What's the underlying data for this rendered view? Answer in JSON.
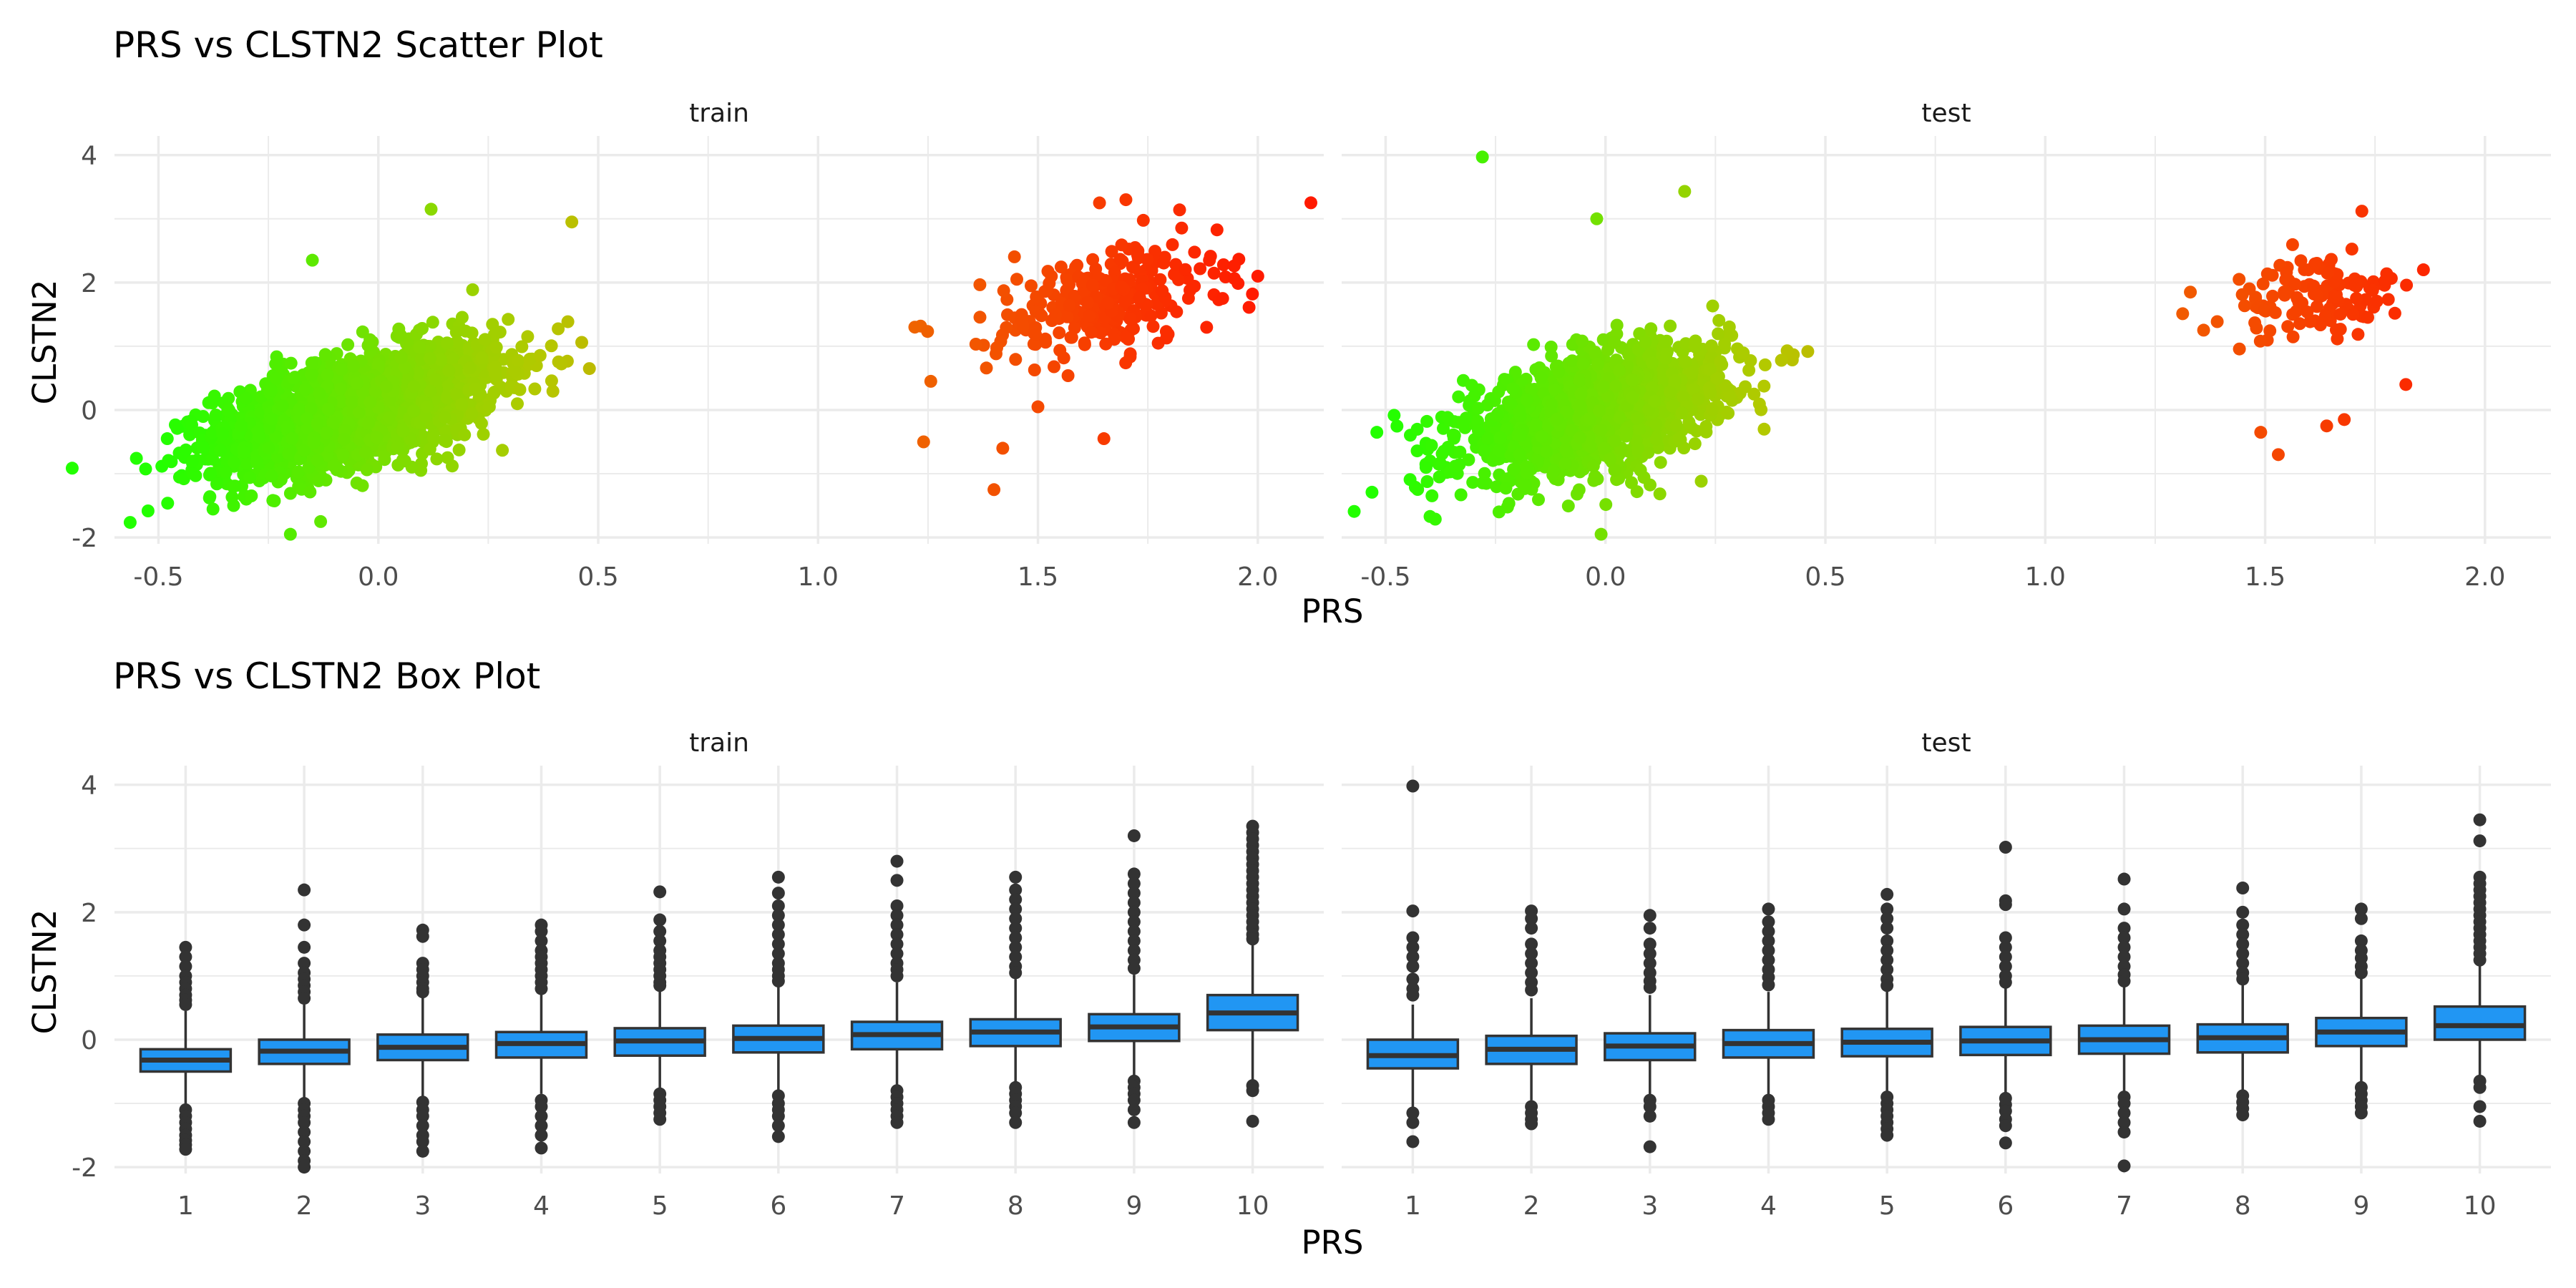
{
  "chart_data": [
    {
      "type": "scatter",
      "title": "PRS vs CLSTN2 Scatter Plot",
      "xlabel": "PRS",
      "ylabel": "CLSTN2",
      "xlim": [
        -0.6,
        2.15
      ],
      "ylim": [
        -2.1,
        4.3
      ],
      "x_ticks": [
        "-0.5",
        "0.0",
        "0.5",
        "1.0",
        "1.5",
        "2.0"
      ],
      "y_ticks": [
        "-2",
        "0",
        "2",
        "4"
      ],
      "grid": true,
      "legend": "none",
      "color_scale": {
        "low": "#22ff00",
        "high": "#ff1a00",
        "mapped_to": "PRS"
      },
      "panels": [
        {
          "name": "train",
          "clusters": [
            {
              "n": 2200,
              "x_mean": -0.05,
              "x_sd": 0.16,
              "y_mean": 0.0,
              "y_sd": 0.5,
              "corr": 0.55
            },
            {
              "n": 280,
              "x_mean": 1.65,
              "x_sd": 0.13,
              "y_mean": 1.7,
              "y_sd": 0.45,
              "corr": 0.4
            }
          ],
          "points": [
            {
              "x": -0.48,
              "y": -0.45
            },
            {
              "x": 0.12,
              "y": 3.15
            },
            {
              "x": 0.44,
              "y": 2.95
            },
            {
              "x": 0.48,
              "y": 0.65
            },
            {
              "x": -0.15,
              "y": 2.35
            },
            {
              "x": -0.2,
              "y": -1.95
            },
            {
              "x": 1.22,
              "y": 1.3
            },
            {
              "x": 1.24,
              "y": -0.5
            },
            {
              "x": 1.4,
              "y": -1.25
            },
            {
              "x": 1.42,
              "y": -0.6
            },
            {
              "x": 1.5,
              "y": 0.05
            },
            {
              "x": 1.64,
              "y": 3.25
            },
            {
              "x": 1.7,
              "y": 3.3
            },
            {
              "x": 1.65,
              "y": -0.45
            },
            {
              "x": 1.89,
              "y": 2.35
            },
            {
              "x": 2.0,
              "y": 2.1
            },
            {
              "x": 1.92,
              "y": 1.75
            }
          ]
        },
        {
          "name": "test",
          "clusters": [
            {
              "n": 1500,
              "x_mean": -0.03,
              "x_sd": 0.15,
              "y_mean": -0.05,
              "y_sd": 0.5,
              "corr": 0.5
            },
            {
              "n": 120,
              "x_mean": 1.62,
              "x_sd": 0.1,
              "y_mean": 1.75,
              "y_sd": 0.35,
              "corr": 0.3
            }
          ],
          "points": [
            {
              "x": -0.28,
              "y": 3.97
            },
            {
              "x": 0.18,
              "y": 3.43
            },
            {
              "x": -0.02,
              "y": 3.0
            },
            {
              "x": -0.52,
              "y": -0.35
            },
            {
              "x": -0.01,
              "y": -1.95
            },
            {
              "x": 0.4,
              "y": 0.78
            },
            {
              "x": 1.33,
              "y": 1.85
            },
            {
              "x": 1.72,
              "y": 3.12
            },
            {
              "x": 1.86,
              "y": 2.2
            },
            {
              "x": 1.82,
              "y": 0.4
            },
            {
              "x": 1.49,
              "y": -0.35
            },
            {
              "x": 1.53,
              "y": -0.7
            },
            {
              "x": 1.68,
              "y": -0.15
            },
            {
              "x": 1.64,
              "y": -0.25
            }
          ]
        }
      ]
    },
    {
      "type": "box",
      "title": "PRS vs CLSTN2 Box Plot",
      "xlabel": "PRS",
      "ylabel": "CLSTN2",
      "categories": [
        "1",
        "2",
        "3",
        "4",
        "5",
        "6",
        "7",
        "8",
        "9",
        "10"
      ],
      "ylim": [
        -2.1,
        4.3
      ],
      "y_ticks": [
        "-2",
        "0",
        "2",
        "4"
      ],
      "grid": true,
      "legend": "none",
      "box_fill": "#2196f3",
      "box_line": "#333333",
      "panels": [
        {
          "name": "train",
          "boxes": [
            {
              "q1": -0.5,
              "median": -0.32,
              "q3": -0.15,
              "whisker_low": -1.02,
              "whisker_high": 0.45,
              "outliers": [
                1.45,
                1.3,
                1.15,
                1.0,
                0.9,
                0.8,
                0.7,
                0.62,
                0.55,
                -1.1,
                -1.2,
                -1.3,
                -1.4,
                -1.5,
                -1.58,
                -1.65,
                -1.72
              ]
            },
            {
              "q1": -0.38,
              "median": -0.18,
              "q3": 0.0,
              "whisker_low": -0.92,
              "whisker_high": 0.55,
              "outliers": [
                2.35,
                1.8,
                1.45,
                1.2,
                1.05,
                0.95,
                0.85,
                0.75,
                0.65,
                -1.0,
                -1.1,
                -1.2,
                -1.3,
                -1.45,
                -1.6,
                -1.75,
                -1.9,
                -2.0
              ]
            },
            {
              "q1": -0.32,
              "median": -0.12,
              "q3": 0.08,
              "whisker_low": -0.9,
              "whisker_high": 0.68,
              "outliers": [
                1.72,
                1.62,
                1.2,
                1.1,
                1.0,
                0.9,
                0.8,
                0.75,
                -0.98,
                -1.1,
                -1.2,
                -1.35,
                -1.5,
                -1.6,
                -1.75
              ]
            },
            {
              "q1": -0.28,
              "median": -0.06,
              "q3": 0.12,
              "whisker_low": -0.85,
              "whisker_high": 0.72,
              "outliers": [
                1.8,
                1.7,
                1.55,
                1.4,
                1.3,
                1.2,
                1.1,
                1.0,
                0.9,
                0.8,
                -0.95,
                -1.05,
                -1.2,
                -1.35,
                -1.5,
                -1.7
              ]
            },
            {
              "q1": -0.25,
              "median": -0.02,
              "q3": 0.18,
              "whisker_low": -0.8,
              "whisker_high": 0.78,
              "outliers": [
                2.32,
                1.88,
                1.7,
                1.55,
                1.4,
                1.3,
                1.2,
                1.1,
                1.0,
                0.9,
                0.85,
                -0.85,
                -0.95,
                -1.05,
                -1.15,
                -1.25
              ]
            },
            {
              "q1": -0.2,
              "median": 0.02,
              "q3": 0.22,
              "whisker_low": -0.8,
              "whisker_high": 0.85,
              "outliers": [
                2.55,
                2.3,
                2.1,
                1.95,
                1.8,
                1.65,
                1.5,
                1.35,
                1.2,
                1.1,
                1.0,
                0.92,
                -0.88,
                -1.0,
                -1.1,
                -1.2,
                -1.35,
                -1.52
              ]
            },
            {
              "q1": -0.15,
              "median": 0.08,
              "q3": 0.28,
              "whisker_low": -0.75,
              "whisker_high": 0.9,
              "outliers": [
                2.8,
                2.5,
                2.1,
                1.95,
                1.8,
                1.65,
                1.5,
                1.35,
                1.2,
                1.1,
                1.0,
                -0.8,
                -0.9,
                -1.0,
                -1.1,
                -1.2,
                -1.3
              ]
            },
            {
              "q1": -0.1,
              "median": 0.12,
              "q3": 0.32,
              "whisker_low": -0.7,
              "whisker_high": 0.95,
              "outliers": [
                2.55,
                2.35,
                2.2,
                2.05,
                1.9,
                1.75,
                1.6,
                1.45,
                1.3,
                1.15,
                1.05,
                -0.75,
                -0.85,
                -0.95,
                -1.05,
                -1.15,
                -1.3
              ]
            },
            {
              "q1": -0.02,
              "median": 0.2,
              "q3": 0.4,
              "whisker_low": -0.6,
              "whisker_high": 1.02,
              "outliers": [
                3.2,
                2.6,
                2.45,
                2.3,
                2.15,
                2.0,
                1.85,
                1.7,
                1.55,
                1.4,
                1.25,
                1.12,
                -0.65,
                -0.75,
                -0.85,
                -0.95,
                -1.1,
                -1.3
              ]
            },
            {
              "q1": 0.15,
              "median": 0.42,
              "q3": 0.7,
              "whisker_low": -0.68,
              "whisker_high": 1.5,
              "outliers": [
                3.35,
                3.25,
                3.15,
                3.05,
                2.95,
                2.85,
                2.75,
                2.65,
                2.55,
                2.45,
                2.35,
                2.25,
                2.15,
                2.05,
                1.95,
                1.85,
                1.75,
                1.65,
                1.58,
                -0.72,
                -0.8,
                -1.28
              ]
            }
          ]
        },
        {
          "name": "test",
          "boxes": [
            {
              "q1": -0.45,
              "median": -0.25,
              "q3": 0.0,
              "whisker_low": -1.05,
              "whisker_high": 0.55,
              "outliers": [
                3.98,
                2.02,
                1.6,
                1.45,
                1.3,
                1.15,
                0.95,
                0.8,
                0.7,
                -1.15,
                -1.3,
                -1.6
              ]
            },
            {
              "q1": -0.38,
              "median": -0.15,
              "q3": 0.06,
              "whisker_low": -0.95,
              "whisker_high": 0.65,
              "outliers": [
                2.02,
                1.9,
                1.75,
                1.5,
                1.35,
                1.2,
                1.05,
                0.9,
                0.78,
                -1.05,
                -1.15,
                -1.25,
                -1.32
              ]
            },
            {
              "q1": -0.32,
              "median": -0.1,
              "q3": 0.1,
              "whisker_low": -0.9,
              "whisker_high": 0.7,
              "outliers": [
                1.95,
                1.75,
                1.5,
                1.35,
                1.2,
                1.05,
                0.92,
                0.82,
                -0.95,
                -1.05,
                -1.2,
                -1.68
              ]
            },
            {
              "q1": -0.28,
              "median": -0.06,
              "q3": 0.15,
              "whisker_low": -0.88,
              "whisker_high": 0.75,
              "outliers": [
                2.05,
                1.85,
                1.7,
                1.55,
                1.4,
                1.25,
                1.1,
                0.98,
                0.86,
                -0.95,
                -1.05,
                -1.15,
                -1.25
              ]
            },
            {
              "q1": -0.26,
              "median": -0.04,
              "q3": 0.17,
              "whisker_low": -0.86,
              "whisker_high": 0.78,
              "outliers": [
                2.28,
                2.05,
                1.9,
                1.75,
                1.55,
                1.4,
                1.25,
                1.1,
                0.95,
                0.85,
                -0.9,
                -1.0,
                -1.1,
                -1.2,
                -1.3,
                -1.4,
                -1.5
              ]
            },
            {
              "q1": -0.24,
              "median": -0.02,
              "q3": 0.2,
              "whisker_low": -0.85,
              "whisker_high": 0.82,
              "outliers": [
                3.02,
                2.18,
                2.12,
                1.6,
                1.45,
                1.3,
                1.15,
                1.0,
                0.9,
                -0.92,
                -1.02,
                -1.12,
                -1.25,
                -1.35,
                -1.62
              ]
            },
            {
              "q1": -0.22,
              "median": 0.0,
              "q3": 0.22,
              "whisker_low": -0.83,
              "whisker_high": 0.85,
              "outliers": [
                2.52,
                2.05,
                1.75,
                1.6,
                1.45,
                1.3,
                1.15,
                1.02,
                0.92,
                -0.9,
                -1.0,
                -1.15,
                -1.3,
                -1.45,
                -1.98
              ]
            },
            {
              "q1": -0.2,
              "median": 0.03,
              "q3": 0.24,
              "whisker_low": -0.82,
              "whisker_high": 0.87,
              "outliers": [
                2.38,
                2.0,
                1.8,
                1.65,
                1.5,
                1.35,
                1.2,
                1.05,
                0.95,
                -0.88,
                -0.98,
                -1.08,
                -1.18
              ]
            },
            {
              "q1": -0.1,
              "median": 0.12,
              "q3": 0.34,
              "whisker_low": -0.68,
              "whisker_high": 0.98,
              "outliers": [
                2.05,
                1.9,
                1.55,
                1.4,
                1.28,
                1.15,
                1.05,
                -0.75,
                -0.85,
                -0.95,
                -1.05,
                -1.15
              ]
            },
            {
              "q1": 0.0,
              "median": 0.22,
              "q3": 0.52,
              "whisker_low": -0.6,
              "whisker_high": 1.2,
              "outliers": [
                3.45,
                3.12,
                2.55,
                2.45,
                2.35,
                2.25,
                2.15,
                2.05,
                1.95,
                1.85,
                1.75,
                1.65,
                1.55,
                1.45,
                1.35,
                1.25,
                -0.65,
                -0.75,
                -1.05,
                -1.28
              ]
            }
          ]
        }
      ]
    }
  ]
}
